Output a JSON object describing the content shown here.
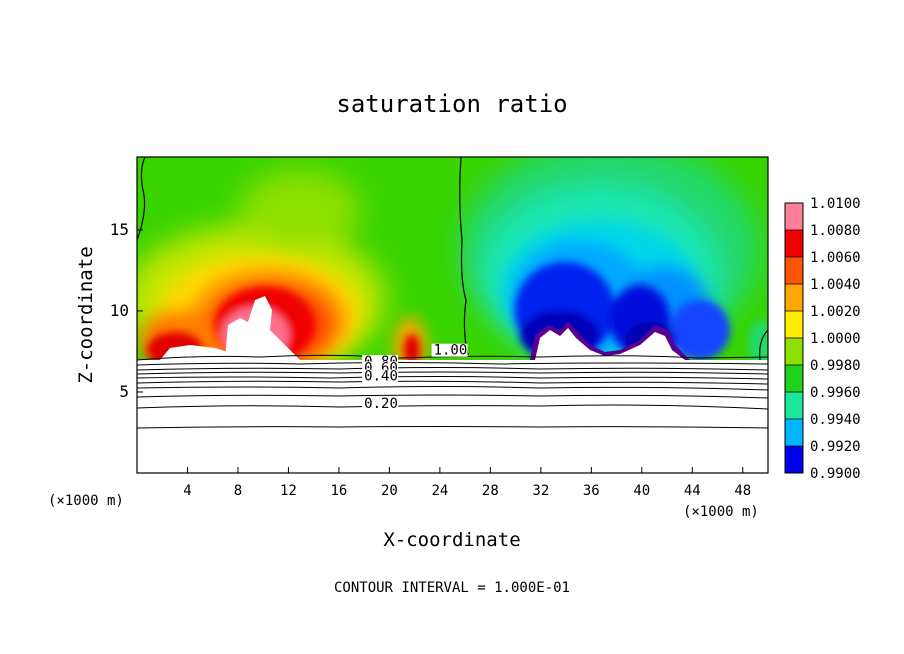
{
  "chart_data": {
    "type": "heatmap",
    "title": "saturation ratio",
    "xlabel": "X-coordinate",
    "ylabel": "Z-coordinate",
    "x_unit": "(×1000 m)",
    "footer": "CONTOUR INTERVAL = 1.000E-01",
    "xlim": [
      0,
      50
    ],
    "ylim": [
      0,
      19.5
    ],
    "x_ticks": [
      4,
      8,
      12,
      16,
      20,
      24,
      28,
      32,
      36,
      40,
      44,
      48
    ],
    "y_ticks": [
      5,
      10,
      15
    ],
    "colorbar": {
      "levels": [
        "1.0100",
        "1.0080",
        "1.0060",
        "1.0040",
        "1.0020",
        "1.0000",
        "0.9980",
        "0.9960",
        "0.9940",
        "0.9920",
        "0.9900"
      ],
      "colors": [
        "#ff7f9a",
        "#f00000",
        "#ff5500",
        "#ffa600",
        "#ffee00",
        "#8fe000",
        "#1ed21e",
        "#1ee69a",
        "#00b7ff",
        "#0000e8",
        "#5a0094"
      ]
    },
    "contour_labels": [
      {
        "text": "1.00",
        "x": 23.5,
        "z": 7.3
      },
      {
        "text": "0.80",
        "x": 18.0,
        "z": 6.6
      },
      {
        "text": "0.60",
        "x": 18.0,
        "z": 6.2
      },
      {
        "text": "0.40",
        "x": 18.0,
        "z": 5.7
      },
      {
        "text": "0.20",
        "x": 18.0,
        "z": 4.0
      }
    ],
    "features": {
      "supersaturated_peak_x": 10,
      "subsaturated_region_x": [
        29,
        47
      ],
      "saturation_boundary_x": 25.5,
      "cloud_base_z": 7.2
    }
  }
}
